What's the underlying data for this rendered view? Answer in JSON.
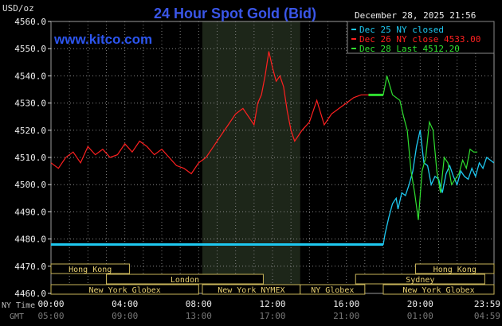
{
  "chart_data": {
    "type": "line",
    "title": "24 Hour Spot Gold (Bid)",
    "watermark": "www.kitco.com",
    "timestamp": "December 28, 2025 21:56",
    "ylabel": "USD/oz",
    "ylim": [
      4460,
      4560
    ],
    "y_ticks": [
      "4560.0",
      "4550.0",
      "4540.0",
      "4530.0",
      "4520.0",
      "4510.0",
      "4500.0",
      "4490.0",
      "4480.0",
      "4470.0",
      "4460.0"
    ],
    "x_ticks_ny": [
      "00:00",
      "04:00",
      "08:00",
      "12:00",
      "16:00",
      "20:00",
      "23:59"
    ],
    "x_ticks_gmt": [
      "05:00",
      "09:00",
      "13:00",
      "17:00",
      "21:00",
      "01:00",
      "04:59"
    ],
    "x_row_label_ny": "NY Time",
    "x_row_label_gmt": "GMT",
    "grid": true,
    "background": "#000000",
    "shaded_session": "New York NYMEX",
    "legend": [
      {
        "text": "Dec 25 NY closed",
        "color": "#1ec8f0"
      },
      {
        "text": "Dec 26 NY close 4533.00",
        "color": "#ff2020"
      },
      {
        "text": "Dec 28 Last 4512.20",
        "color": "#30e030"
      }
    ],
    "sessions": [
      {
        "label": "Hong Kong",
        "start_hour": 0,
        "end_hour": 4.25
      },
      {
        "label": "London",
        "start_hour": 3,
        "end_hour": 11.5
      },
      {
        "label": "New York Globex",
        "start_hour": 0,
        "end_hour": 8
      },
      {
        "label": "New York NYMEX",
        "start_hour": 8.2,
        "end_hour": 13.5
      },
      {
        "label": "NY Globex",
        "start_hour": 13.5,
        "end_hour": 17
      },
      {
        "label": "Hong Kong",
        "start_hour": 19.75,
        "end_hour": 24
      },
      {
        "label": "Sydney",
        "start_hour": 16.5,
        "end_hour": 23.5
      },
      {
        "label": "New York Globex",
        "start_hour": 18,
        "end_hour": 24
      }
    ],
    "series": [
      {
        "name": "Dec 25 NY closed",
        "color": "#1ec8f0",
        "x": [
          0,
          18,
          18.1,
          18.3,
          18.5,
          18.7,
          18.8,
          19.0,
          19.2,
          19.4,
          19.6,
          19.8,
          20.0,
          20.2,
          20.4,
          20.6,
          20.8,
          21.0,
          21.2,
          21.4,
          21.6,
          21.8,
          22.0,
          22.2,
          22.4,
          22.6,
          22.8,
          23.0,
          23.2,
          23.4,
          23.6,
          23.8,
          23.99
        ],
        "y": [
          4478,
          4478,
          4482,
          4488,
          4493,
          4495,
          4491,
          4497,
          4496,
          4500,
          4505,
          4514,
          4520,
          4508,
          4507,
          4500,
          4503,
          4502,
          4497,
          4504,
          4507,
          4503,
          4500,
          4505,
          4503,
          4502,
          4506,
          4503,
          4508,
          4506,
          4510,
          4509,
          4508
        ]
      },
      {
        "name": "Dec 26 NY close 4533.00",
        "color": "#ff2020",
        "x": [
          0,
          0.4,
          0.8,
          1.2,
          1.6,
          2.0,
          2.4,
          2.8,
          3.2,
          3.6,
          4.0,
          4.4,
          4.8,
          5.2,
          5.6,
          6.0,
          6.4,
          6.8,
          7.2,
          7.6,
          8.0,
          8.4,
          8.8,
          9.2,
          9.6,
          10.0,
          10.4,
          10.8,
          11.0,
          11.2,
          11.4,
          11.6,
          11.8,
          12.0,
          12.2,
          12.4,
          12.6,
          12.8,
          13.0,
          13.2,
          13.6,
          14.0,
          14.4,
          14.8,
          15.2,
          15.6,
          16.0,
          16.4,
          16.8,
          17.2,
          17.6,
          17.8,
          18.0
        ],
        "y": [
          4508,
          4506,
          4510,
          4512,
          4508,
          4514,
          4511,
          4513,
          4510,
          4511,
          4515,
          4512,
          4516,
          4514,
          4511,
          4513,
          4510,
          4507,
          4506,
          4504,
          4508,
          4510,
          4514,
          4518,
          4522,
          4526,
          4528,
          4524,
          4522,
          4530,
          4533,
          4540,
          4549,
          4543,
          4538,
          4540,
          4536,
          4527,
          4520,
          4516,
          4520,
          4523,
          4531,
          4522,
          4526,
          4528,
          4530,
          4532,
          4533,
          4533,
          4533,
          4533,
          4533
        ]
      },
      {
        "name": "Dec 28 Last 4512.20",
        "color": "#30e030",
        "x": [
          18,
          18.2,
          18.5,
          18.9,
          19.1,
          19.3,
          19.5,
          19.7,
          19.9,
          20.1,
          20.3,
          20.5,
          20.7,
          20.9,
          21.1,
          21.3,
          21.5,
          21.7,
          21.9,
          22.1,
          22.3,
          22.5,
          22.7,
          22.9,
          23.1
        ],
        "y": [
          4533,
          4540,
          4533,
          4531,
          4525,
          4520,
          4505,
          4497,
          4487,
          4505,
          4510,
          4523,
          4520,
          4505,
          4497,
          4510,
          4508,
          4500,
          4502,
          4504,
          4509,
          4506,
          4513,
          4512,
          4512
        ]
      }
    ]
  }
}
